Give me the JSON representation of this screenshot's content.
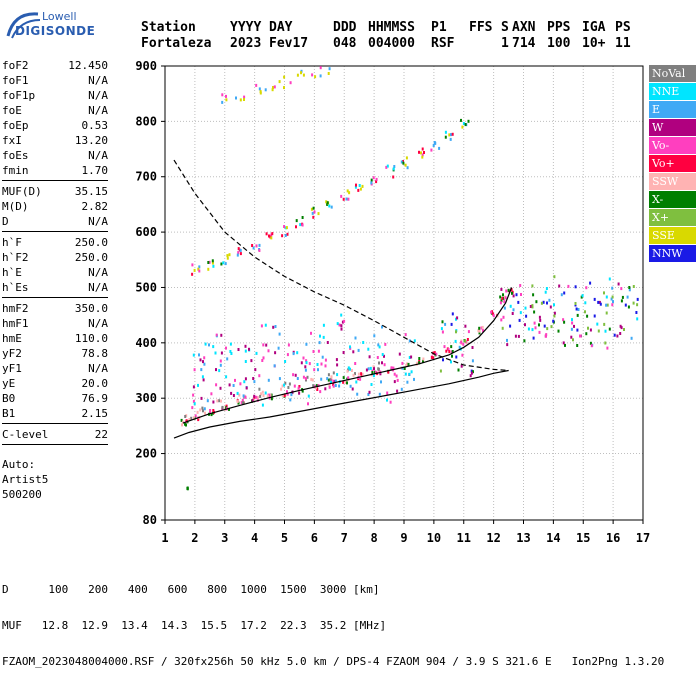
{
  "logo": {
    "line1": "Lowell",
    "line2": "DIGISONDE"
  },
  "header": {
    "labels": [
      "Station",
      "YYYY",
      "DAY",
      "DDD",
      "HHMMSS",
      "P1",
      "FFS",
      "S",
      "AXN",
      "PPS",
      "IGA",
      "PS"
    ],
    "values": [
      "Fortaleza",
      "2023",
      "Fev17",
      "048",
      "004000",
      "RSF",
      "",
      "1",
      "714",
      "100",
      "10+",
      "11"
    ]
  },
  "params": {
    "groups": [
      [
        {
          "k": "foF2",
          "v": "12.450"
        },
        {
          "k": "foF1",
          "v": "N/A"
        },
        {
          "k": "foF1p",
          "v": "N/A"
        },
        {
          "k": "foE",
          "v": "N/A"
        },
        {
          "k": "foEp",
          "v": "0.53"
        },
        {
          "k": "fxI",
          "v": "13.20"
        },
        {
          "k": "foEs",
          "v": "N/A"
        },
        {
          "k": "fmin",
          "v": "1.70"
        }
      ],
      [
        {
          "k": "MUF(D)",
          "v": "35.15"
        },
        {
          "k": "M(D)",
          "v": "2.82"
        },
        {
          "k": "D",
          "v": "N/A"
        }
      ],
      [
        {
          "k": "h`F",
          "v": "250.0"
        },
        {
          "k": "h`F2",
          "v": "250.0"
        },
        {
          "k": "h`E",
          "v": "N/A"
        },
        {
          "k": "h`Es",
          "v": "N/A"
        }
      ],
      [
        {
          "k": "hmF2",
          "v": "350.0"
        },
        {
          "k": "hmF1",
          "v": "N/A"
        },
        {
          "k": "hmE",
          "v": "110.0"
        },
        {
          "k": "yF2",
          "v": "78.8"
        },
        {
          "k": "yF1",
          "v": "N/A"
        },
        {
          "k": "yE",
          "v": "20.0"
        },
        {
          "k": "B0",
          "v": "76.9"
        },
        {
          "k": "B1",
          "v": "2.15"
        }
      ],
      [
        {
          "k": "C-level",
          "v": "22"
        }
      ]
    ],
    "auto": [
      "Auto:",
      "Artist5",
      "500200"
    ]
  },
  "legend": [
    {
      "label": "NoVal",
      "color": "#7f7f7f"
    },
    {
      "label": "NNE",
      "color": "#00e5ff"
    },
    {
      "label": "E",
      "color": "#3fa9f5"
    },
    {
      "label": "W",
      "color": "#b0007f"
    },
    {
      "label": "Vo-",
      "color": "#ff3fbf"
    },
    {
      "label": "Vo+",
      "color": "#ff0040"
    },
    {
      "label": "SSW",
      "color": "#ffb3b3"
    },
    {
      "label": "X-",
      "color": "#007f00"
    },
    {
      "label": "X+",
      "color": "#7fbf3f"
    },
    {
      "label": "SSE",
      "color": "#d9d900"
    },
    {
      "label": "NNW",
      "color": "#1a1ae6"
    }
  ],
  "bottom": {
    "d_label": "D",
    "d_values": [
      "100",
      "200",
      "400",
      "600",
      "800",
      "1000",
      "1500",
      "3000",
      "[km]"
    ],
    "muf_label": "MUF",
    "muf_values": [
      "12.8",
      "12.9",
      "13.4",
      "14.3",
      "15.5",
      "17.2",
      "22.3",
      "35.2",
      "[MHz]"
    ],
    "footer": "FZAOM_2023048004000.RSF / 320fx256h 50 kHz 5.0 km / DPS-4 FZAOM 904 / 3.9 S 321.6 E",
    "version": "Ion2Png 1.3.20"
  },
  "chart_data": {
    "type": "scatter",
    "title": "",
    "xlabel": "",
    "ylabel": "",
    "xlim": [
      1,
      17
    ],
    "ylim": [
      80,
      900
    ],
    "xticks": [
      "1",
      "2",
      "3",
      "4",
      "5",
      "6",
      "7",
      "8",
      "9",
      "10",
      "11",
      "12",
      "13",
      "14",
      "15",
      "16",
      "17"
    ],
    "yticks": [
      {
        "value": 80,
        "label": "80"
      },
      {
        "value": 200,
        "label": "200"
      },
      {
        "value": 300,
        "label": "300"
      },
      {
        "value": 400,
        "label": "400"
      },
      {
        "value": 500,
        "label": "500"
      },
      {
        "value": 600,
        "label": "600"
      },
      {
        "value": 700,
        "label": "700"
      },
      {
        "value": 800,
        "label": "800"
      },
      {
        "value": 900,
        "label": "900"
      }
    ],
    "grid": "dotted",
    "echo_clusters": [
      {
        "name": "F-trace",
        "points": [
          [
            1.6,
            258
          ],
          [
            2,
            268
          ],
          [
            2.5,
            278
          ],
          [
            3,
            286
          ],
          [
            3.5,
            293
          ],
          [
            4,
            300
          ],
          [
            4.5,
            306
          ],
          [
            5,
            312
          ],
          [
            5.5,
            318
          ],
          [
            6,
            324
          ],
          [
            6.5,
            330
          ],
          [
            7,
            336
          ],
          [
            7.5,
            342
          ],
          [
            8,
            348
          ],
          [
            8.5,
            355
          ],
          [
            9,
            362
          ],
          [
            9.5,
            370
          ],
          [
            10,
            380
          ],
          [
            10.5,
            392
          ],
          [
            11,
            405
          ],
          [
            11.5,
            425
          ],
          [
            12,
            455
          ],
          [
            12.3,
            480
          ],
          [
            12.5,
            498
          ]
        ],
        "colors": [
          "#ff0040",
          "#ff3fbf",
          "#007f00",
          "#ffb3b3"
        ],
        "spread": [
          0.12,
          6
        ],
        "density": 7
      },
      {
        "name": "F-lower",
        "points": [
          [
            1.7,
            265
          ],
          [
            2.2,
            280
          ],
          [
            2.8,
            292
          ],
          [
            3.5,
            302
          ],
          [
            4.2,
            312
          ],
          [
            5,
            322
          ],
          [
            5.8,
            333
          ],
          [
            6.5,
            342
          ],
          [
            7.2,
            351
          ],
          [
            8,
            362
          ]
        ],
        "colors": [
          "#ffb3b3",
          "#7f7f7f"
        ],
        "spread": [
          0.15,
          8
        ],
        "density": 5
      },
      {
        "name": "F-second-hop",
        "points": [
          [
            2,
            535
          ],
          [
            2.5,
            545
          ],
          [
            3,
            555
          ],
          [
            3.5,
            566
          ],
          [
            4,
            578
          ],
          [
            4.5,
            592
          ],
          [
            5,
            606
          ],
          [
            5.5,
            622
          ],
          [
            6,
            638
          ],
          [
            6.5,
            654
          ],
          [
            7,
            668
          ],
          [
            7.5,
            682
          ],
          [
            8,
            696
          ],
          [
            8.5,
            712
          ],
          [
            9,
            728
          ],
          [
            9.5,
            744
          ],
          [
            10,
            760
          ],
          [
            10.5,
            780
          ],
          [
            11,
            796
          ]
        ],
        "colors": [
          "#ff0040",
          "#ff3fbf",
          "#007f00",
          "#3fa9f5",
          "#00e5ff",
          "#d9d900"
        ],
        "spread": [
          0.15,
          10
        ],
        "density": 6
      },
      {
        "name": "F-third-hop",
        "points": [
          [
            3,
            840
          ],
          [
            3.5,
            848
          ],
          [
            4,
            858
          ],
          [
            4.5,
            866
          ],
          [
            5,
            874
          ],
          [
            5.5,
            882
          ],
          [
            6,
            890
          ],
          [
            6.5,
            897
          ]
        ],
        "colors": [
          "#d9d900",
          "#ff3fbf",
          "#3fa9f5"
        ],
        "spread": [
          0.2,
          12
        ],
        "density": 4
      },
      {
        "name": "spread-W",
        "points": [
          [
            2,
            330
          ],
          [
            2.5,
            350
          ],
          [
            3,
            370
          ],
          [
            3.5,
            360
          ],
          [
            4,
            340
          ],
          [
            4.5,
            380
          ],
          [
            5,
            360
          ],
          [
            5.5,
            340
          ],
          [
            6,
            380
          ],
          [
            6.5,
            350
          ],
          [
            7,
            400
          ],
          [
            7.5,
            360
          ],
          [
            8,
            380
          ],
          [
            8.5,
            350
          ],
          [
            9,
            370
          ]
        ],
        "colors": [
          "#b0007f",
          "#ff3fbf",
          "#3fa9f5",
          "#00e5ff"
        ],
        "spread": [
          0.35,
          55
        ],
        "density": 14
      },
      {
        "name": "spread-high",
        "points": [
          [
            12.5,
            450
          ],
          [
            13,
            460
          ],
          [
            13.5,
            440
          ],
          [
            14,
            470
          ],
          [
            14.5,
            450
          ],
          [
            15,
            460
          ],
          [
            15.5,
            440
          ],
          [
            16,
            470
          ],
          [
            16.5,
            450
          ],
          [
            10.5,
            400
          ],
          [
            11,
            390
          ]
        ],
        "colors": [
          "#1a1ae6",
          "#3fa9f5",
          "#00e5ff",
          "#b0007f",
          "#007f00",
          "#7fbf3f",
          "#ff3fbf"
        ],
        "spread": [
          0.3,
          55
        ],
        "density": 16
      },
      {
        "name": "isolated",
        "points": [
          [
            1.7,
            140
          ]
        ],
        "colors": [
          "#007f00"
        ],
        "spread": [
          0.05,
          1
        ],
        "density": 3
      }
    ],
    "curves": [
      {
        "name": "virtual-height-profile",
        "style": "solid",
        "points": [
          [
            1.3,
            228
          ],
          [
            1.8,
            238
          ],
          [
            2.5,
            248
          ],
          [
            3.5,
            258
          ],
          [
            4.5,
            266
          ],
          [
            5.5,
            276
          ],
          [
            6.5,
            286
          ],
          [
            7.5,
            296
          ],
          [
            8.5,
            306
          ],
          [
            9.5,
            316
          ],
          [
            10.5,
            326
          ],
          [
            11.5,
            338
          ],
          [
            12,
            345
          ],
          [
            12.5,
            350
          ]
        ]
      },
      {
        "name": "fitted-trace",
        "style": "solid",
        "points": [
          [
            1.6,
            255
          ],
          [
            2.5,
            272
          ],
          [
            3.5,
            287
          ],
          [
            4.5,
            301
          ],
          [
            5.5,
            314
          ],
          [
            6.5,
            326
          ],
          [
            7.5,
            338
          ],
          [
            8.5,
            350
          ],
          [
            9.5,
            362
          ],
          [
            10.5,
            378
          ],
          [
            11,
            392
          ],
          [
            11.5,
            410
          ],
          [
            12,
            440
          ],
          [
            12.4,
            472
          ],
          [
            12.6,
            500
          ]
        ]
      },
      {
        "name": "muf-curve",
        "style": "dashed",
        "points": [
          [
            1.3,
            730
          ],
          [
            2,
            670
          ],
          [
            3,
            600
          ],
          [
            4,
            555
          ],
          [
            5,
            520
          ],
          [
            6,
            492
          ],
          [
            7,
            468
          ],
          [
            8,
            440
          ],
          [
            9,
            410
          ],
          [
            10,
            380
          ],
          [
            11,
            360
          ],
          [
            12,
            352
          ],
          [
            12.5,
            350
          ]
        ]
      }
    ]
  }
}
